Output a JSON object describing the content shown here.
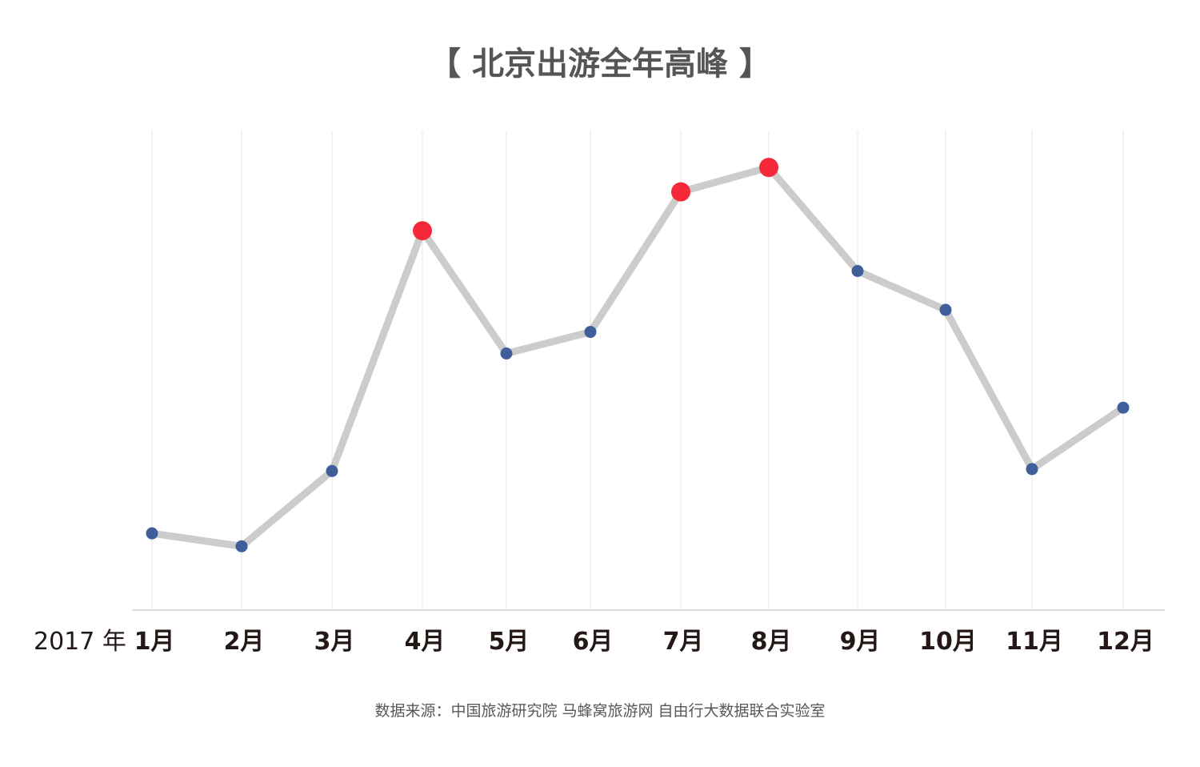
{
  "chart_data": {
    "type": "line",
    "title": "【 北京出游全年高峰 】",
    "year_label": "2017 年",
    "categories": [
      "1月",
      "2月",
      "3月",
      "4月",
      "5月",
      "6月",
      "7月",
      "8月",
      "9月",
      "10月",
      "11月",
      "12月"
    ],
    "values": [
      16,
      13.3,
      29,
      79.1,
      53.5,
      58,
      87.2,
      92.3,
      70.7,
      62.6,
      29.4,
      42.2
    ],
    "highlight": [
      false,
      false,
      false,
      true,
      false,
      false,
      true,
      true,
      false,
      false,
      false,
      false
    ],
    "ylim": [
      0,
      100
    ],
    "grid": "vertical",
    "source": "数据来源：中国旅游研究院 马蜂窝旅游网 自由行大数据联合实验室",
    "colors": {
      "line": "#cccccc",
      "point": "#3e5f99",
      "highlight": "#f5293a",
      "grid": "#e6e6e6",
      "axis": "#d0d0d0"
    }
  }
}
